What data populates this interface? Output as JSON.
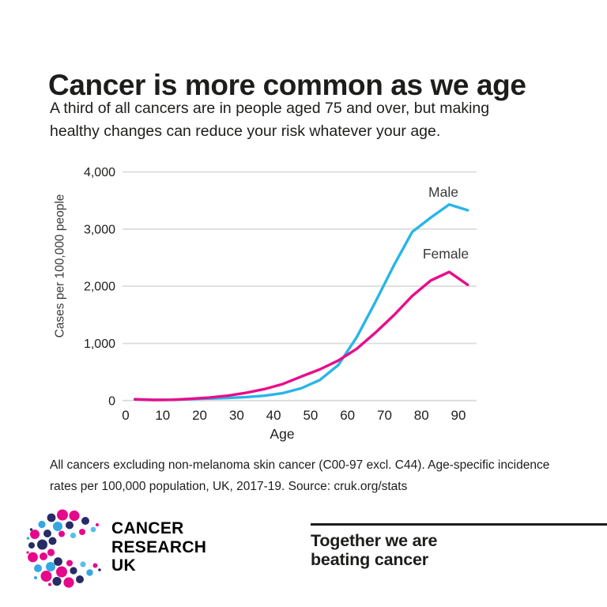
{
  "header": {
    "title": "Cancer is more common as we age",
    "subtitle_line1": "A third of all cancers are in people aged 75 and over, but making",
    "subtitle_line2": "healthy changes can reduce your risk whatever your age."
  },
  "chart_data": {
    "type": "line",
    "title": "",
    "xlabel": "Age",
    "ylabel": "Cases per 100,000 people",
    "x": [
      2.5,
      7.5,
      12.5,
      17.5,
      22.5,
      27.5,
      32.5,
      37.5,
      42.5,
      47.5,
      52.5,
      57.5,
      62.5,
      67.5,
      72.5,
      77.5,
      82.5,
      87.5,
      92.5
    ],
    "series": [
      {
        "name": "Male",
        "color": "#29b5e8",
        "values": [
          25,
          12,
          14,
          25,
          35,
          45,
          60,
          85,
          130,
          215,
          360,
          620,
          1110,
          1720,
          2360,
          2950,
          3200,
          3430,
          3330
        ]
      },
      {
        "name": "Female",
        "color": "#e80d8b",
        "values": [
          20,
          11,
          14,
          30,
          52,
          85,
          135,
          200,
          290,
          420,
          545,
          700,
          905,
          1185,
          1490,
          1830,
          2100,
          2250,
          2025
        ]
      }
    ],
    "xticks": [
      0,
      10,
      20,
      30,
      40,
      50,
      60,
      70,
      80,
      90
    ],
    "yticks": [
      {
        "value": 0,
        "label": "0"
      },
      {
        "value": 1000,
        "label": "1,000"
      },
      {
        "value": 2000,
        "label": "2,000"
      },
      {
        "value": 3000,
        "label": "3,000"
      },
      {
        "value": 4000,
        "label": "4,000"
      }
    ],
    "ylim": [
      0,
      4000
    ],
    "xlim": [
      0,
      96
    ],
    "grid": "horizontal",
    "legend": "inline-labels-near-lines"
  },
  "footnote": {
    "line1": "All cancers excluding non-melanoma skin cancer (C00-97 excl. C44). Age-specific incidence",
    "line2": "rates per 100,000 population, UK, 2017-19. Source: cruk.org/stats"
  },
  "footer": {
    "brand_line1": "CANCER",
    "brand_line2": "RESEARCH",
    "brand_line3": "UK",
    "tagline_line1": "Together we are",
    "tagline_line2": "beating cancer"
  },
  "colors": {
    "male_line": "#29b5e8",
    "female_line": "#e80d8b",
    "logo_pink": "#e6088b",
    "logo_blue": "#35a8e2",
    "logo_skyblue": "#54bfed",
    "logo_navy": "#272b66",
    "gridline": "#dcdcdc",
    "text": "#1d1d1b"
  }
}
